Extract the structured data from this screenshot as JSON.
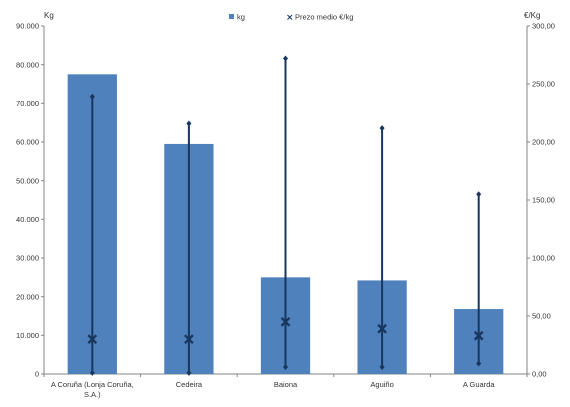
{
  "colors": {
    "bar": "#4f81bd",
    "price": "#17375e",
    "axis": "#868686"
  },
  "legend": [
    {
      "label": "kg",
      "icon": "square-marker-icon"
    },
    {
      "label": "Prezo medio €/kg",
      "icon": "x-marker-icon"
    }
  ],
  "chart_data": {
    "type": "bar",
    "title": "",
    "grid": false,
    "legend_position": "top",
    "categories": [
      [
        "A Coruña (Lonja Coruña,",
        "S.A.)"
      ],
      [
        "Cedeira"
      ],
      [
        "Baiona"
      ],
      [
        "Aguiño"
      ],
      [
        "A Guarda"
      ]
    ],
    "y_left": {
      "label": "Kg",
      "min": 0,
      "max": 90000,
      "ticks": [
        "0",
        "10.000",
        "20.000",
        "30.000",
        "40.000",
        "50.000",
        "60.000",
        "70.000",
        "80.000",
        "90.000"
      ]
    },
    "y_right": {
      "label": "€/Kg",
      "min": 0,
      "max": 300,
      "ticks": [
        "0,00",
        "50,00",
        "100,00",
        "150,00",
        "200,00",
        "250,00",
        "300,00"
      ]
    },
    "series": [
      {
        "name": "kg",
        "axis": "left",
        "values": [
          77500,
          59500,
          25000,
          24200,
          16800
        ]
      },
      {
        "name": "Prezo medio €/kg",
        "axis": "right",
        "values": [
          30,
          30,
          45,
          39,
          33
        ],
        "high": [
          239,
          216,
          272,
          212,
          155
        ],
        "low": [
          1,
          1,
          6,
          6,
          9
        ]
      }
    ]
  }
}
